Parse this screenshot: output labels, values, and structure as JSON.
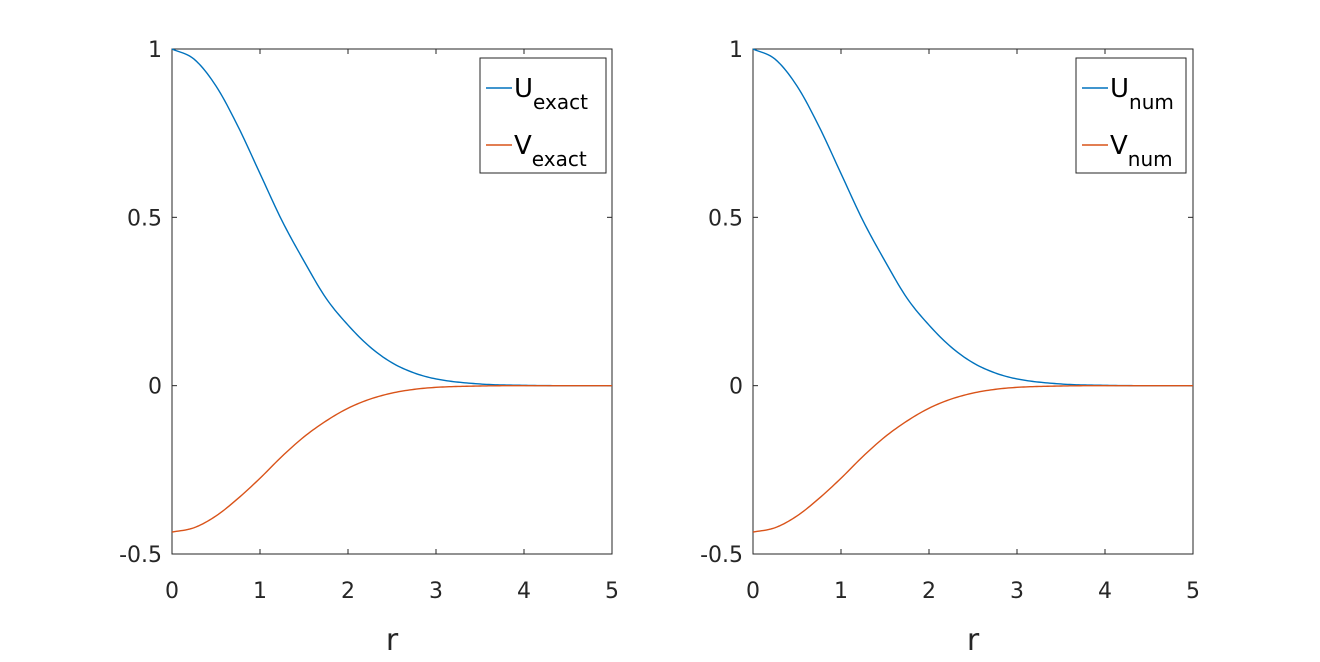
{
  "chart_data": [
    {
      "type": "line",
      "xlabel": "r",
      "ylabel": "",
      "xlim": [
        0,
        5
      ],
      "ylim": [
        -0.5,
        1
      ],
      "x_ticks": [
        "0",
        "1",
        "2",
        "3",
        "4",
        "5"
      ],
      "y_ticks": [
        "-0.5",
        "0",
        "0.5",
        "1"
      ],
      "grid": false,
      "legend_position": "top-right",
      "x": [
        0,
        0.25,
        0.5,
        0.75,
        1,
        1.25,
        1.5,
        1.75,
        2,
        2.25,
        2.5,
        2.75,
        3,
        3.5,
        4,
        4.5,
        5
      ],
      "series": [
        {
          "name_main": "U",
          "name_sub": "exact",
          "color": "#0072BD",
          "values": [
            1.0,
            0.97,
            0.89,
            0.77,
            0.63,
            0.49,
            0.37,
            0.26,
            0.18,
            0.115,
            0.068,
            0.038,
            0.02,
            0.005,
            0.001,
            0.0,
            0.0
          ]
        },
        {
          "name_main": "V",
          "name_sub": "exact",
          "color": "#D95319",
          "values": [
            -0.435,
            -0.422,
            -0.387,
            -0.335,
            -0.275,
            -0.21,
            -0.152,
            -0.105,
            -0.067,
            -0.04,
            -0.022,
            -0.011,
            -0.005,
            -0.001,
            0.0,
            0.0,
            0.0
          ]
        }
      ]
    },
    {
      "type": "line",
      "xlabel": "r",
      "ylabel": "",
      "xlim": [
        0,
        5
      ],
      "ylim": [
        -0.5,
        1
      ],
      "x_ticks": [
        "0",
        "1",
        "2",
        "3",
        "4",
        "5"
      ],
      "y_ticks": [
        "-0.5",
        "0",
        "0.5",
        "1"
      ],
      "grid": false,
      "legend_position": "top-right",
      "x": [
        0,
        0.25,
        0.5,
        0.75,
        1,
        1.25,
        1.5,
        1.75,
        2,
        2.25,
        2.5,
        2.75,
        3,
        3.5,
        4,
        4.5,
        5
      ],
      "series": [
        {
          "name_main": "U",
          "name_sub": "num",
          "color": "#0072BD",
          "values": [
            1.0,
            0.97,
            0.89,
            0.77,
            0.63,
            0.49,
            0.37,
            0.26,
            0.18,
            0.115,
            0.068,
            0.038,
            0.02,
            0.005,
            0.001,
            0.0,
            0.0
          ]
        },
        {
          "name_main": "V",
          "name_sub": "num",
          "color": "#D95319",
          "values": [
            -0.435,
            -0.422,
            -0.387,
            -0.335,
            -0.275,
            -0.21,
            -0.152,
            -0.105,
            -0.067,
            -0.04,
            -0.022,
            -0.011,
            -0.005,
            -0.001,
            0.0,
            0.0,
            0.0
          ]
        }
      ]
    }
  ]
}
